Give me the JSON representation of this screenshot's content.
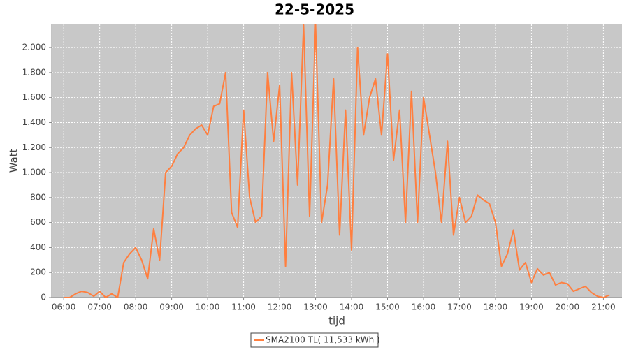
{
  "chart_data": {
    "type": "line",
    "title": "22-5-2025",
    "x_label": "tijd",
    "y_label": "Watt",
    "x": [
      "06:00",
      "06:10",
      "06:20",
      "06:30",
      "06:40",
      "06:50",
      "07:00",
      "07:10",
      "07:20",
      "07:30",
      "07:40",
      "07:50",
      "08:00",
      "08:10",
      "08:20",
      "08:30",
      "08:40",
      "08:50",
      "09:00",
      "09:10",
      "09:20",
      "09:30",
      "09:40",
      "09:50",
      "10:00",
      "10:10",
      "10:20",
      "10:30",
      "10:40",
      "10:50",
      "11:00",
      "11:10",
      "11:20",
      "11:30",
      "11:40",
      "11:50",
      "12:00",
      "12:10",
      "12:20",
      "12:30",
      "12:40",
      "12:50",
      "13:00",
      "13:10",
      "13:20",
      "13:30",
      "13:40",
      "13:50",
      "14:00",
      "14:10",
      "14:20",
      "14:30",
      "14:40",
      "14:50",
      "15:00",
      "15:10",
      "15:20",
      "15:30",
      "15:40",
      "15:50",
      "16:00",
      "16:10",
      "16:20",
      "16:30",
      "16:40",
      "16:50",
      "17:00",
      "17:10",
      "17:20",
      "17:30",
      "17:40",
      "17:50",
      "18:00",
      "18:10",
      "18:20",
      "18:30",
      "18:40",
      "18:50",
      "19:00",
      "19:10",
      "19:20",
      "19:30",
      "19:40",
      "19:50",
      "20:00",
      "20:10",
      "20:20",
      "20:30",
      "20:40",
      "20:50",
      "21:00",
      "21:10"
    ],
    "series": [
      {
        "name": "SMA2100 TL( 11,533 kWh )",
        "color": "#ff7f3f",
        "values": [
          0,
          0,
          30,
          50,
          40,
          10,
          50,
          0,
          30,
          0,
          280,
          350,
          400,
          300,
          150,
          550,
          300,
          1000,
          1050,
          1150,
          1200,
          1300,
          1350,
          1380,
          1300,
          1530,
          1550,
          1800,
          680,
          560,
          1500,
          800,
          600,
          650,
          1800,
          1250,
          1700,
          250,
          1800,
          900,
          2180,
          650,
          2185,
          600,
          900,
          1750,
          500,
          1500,
          380,
          2000,
          1300,
          1600,
          1750,
          1300,
          1950,
          1100,
          1500,
          600,
          1650,
          600,
          1600,
          1300,
          1000,
          600,
          1250,
          500,
          800,
          600,
          650,
          820,
          780,
          750,
          600,
          250,
          350,
          540,
          220,
          280,
          120,
          230,
          180,
          200,
          100,
          120,
          110,
          50,
          70,
          90,
          40,
          10,
          0,
          20
        ]
      }
    ],
    "xlim": [
      "05:40",
      "21:31"
    ],
    "xticks": [
      "06:00",
      "07:00",
      "08:00",
      "09:00",
      "10:00",
      "11:00",
      "12:00",
      "13:00",
      "14:00",
      "15:00",
      "16:00",
      "17:00",
      "18:00",
      "19:00",
      "20:00",
      "21:00"
    ],
    "ylim": [
      0,
      2185
    ],
    "yticks": [
      0,
      200,
      400,
      600,
      800,
      {
        "value": 1000,
        "label": "1.000"
      },
      {
        "value": 1200,
        "label": "1.200"
      },
      {
        "value": 1400,
        "label": "1.400"
      },
      {
        "value": 1600,
        "label": "1.600"
      },
      {
        "value": 1800,
        "label": "1.800"
      },
      {
        "value": 2000,
        "label": "2.000"
      }
    ],
    "grid": true,
    "legend": "bottom"
  }
}
